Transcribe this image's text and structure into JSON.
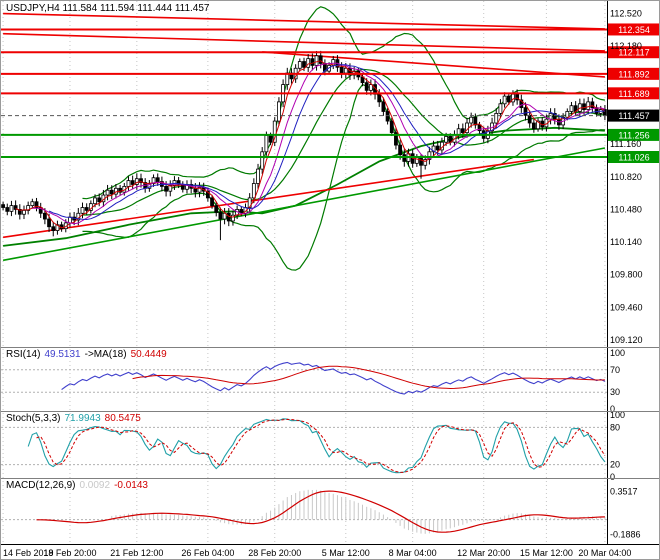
{
  "header": {
    "main": "USDJPY,H4 111.584 111.594 111.444 111.457",
    "rsi": {
      "name": "RSI(14)",
      "value": "49.5131",
      "ma_name": "->MA(18)",
      "ma_value": "50.4449"
    },
    "stoch": {
      "name": "Stoch(5,3,3)",
      "value": "71.9943",
      "signal": "80.5475"
    },
    "macd": {
      "name": "MACD(12,26,9)",
      "value": "0.0092",
      "signal": "-0.0143"
    }
  },
  "colors": {
    "background": "#ffffff",
    "bull": "#ffffff",
    "bear": "#000000",
    "candle_outline": "#000000",
    "resistance": "#ee0000",
    "support": "#009900",
    "bollinger": "#007a00",
    "ma_slow": "#008000",
    "ma_red": "#d00000",
    "ma_magenta": "#b000b0",
    "ma_blue": "#2020c0",
    "rsi_line": "#4040cc",
    "rsi_ma": "#d00000",
    "stoch_k": "#20a0a8",
    "stoch_d": "#d00000",
    "macd_hist": "#c8c8c8",
    "macd_signal": "#d00000",
    "grid": "#c6c6c6",
    "level_dotted": "#b0b0b0",
    "axis_text": "#000000",
    "divider": "#808080",
    "frame": "#000000",
    "current_price_bg": "#000000",
    "current_price_line": "#555555"
  },
  "chart_data": {
    "type": "candlestick",
    "symbol": "USDJPY",
    "timeframe": "H4",
    "last_bar_ohlc": [
      111.584,
      111.594,
      111.444,
      111.457
    ],
    "current_price": 111.457,
    "current_price_label": "111.457",
    "ylim": [
      109.058,
      112.64
    ],
    "yticks": [
      112.52,
      112.18,
      111.16,
      110.82,
      110.48,
      110.14,
      109.8,
      109.46,
      109.12
    ],
    "x_tick_labels": [
      "14 Feb 2019",
      "18 Feb 20:00",
      "21 Feb 12:00",
      "26 Feb 04:00",
      "28 Feb 20:00",
      "5 Mar 12:00",
      "8 Mar 04:00",
      "12 Mar 20:00",
      "15 Mar 12:00",
      "20 Mar 04:00"
    ],
    "x_tick_indices": [
      0,
      16,
      32,
      49,
      65,
      82,
      98,
      115,
      130,
      144
    ],
    "closes": [
      110.5,
      110.46,
      110.52,
      110.48,
      110.43,
      110.47,
      110.52,
      110.56,
      110.5,
      110.44,
      110.38,
      110.3,
      110.26,
      110.32,
      110.28,
      110.34,
      110.4,
      110.37,
      110.44,
      110.5,
      110.47,
      110.54,
      110.6,
      110.56,
      110.63,
      110.68,
      110.64,
      110.7,
      110.66,
      110.72,
      110.78,
      110.74,
      110.8,
      110.76,
      110.7,
      110.75,
      110.81,
      110.77,
      110.72,
      110.67,
      110.73,
      110.78,
      110.74,
      110.69,
      110.74,
      110.7,
      110.66,
      110.71,
      110.67,
      110.6,
      110.52,
      110.45,
      110.38,
      110.44,
      110.36,
      110.42,
      110.48,
      110.44,
      110.5,
      110.6,
      110.75,
      110.9,
      111.08,
      111.25,
      111.18,
      111.4,
      111.6,
      111.78,
      111.9,
      111.84,
      111.95,
      112.02,
      111.96,
      112.05,
      111.98,
      112.08,
      112.0,
      111.92,
      111.98,
      112.04,
      111.96,
      111.9,
      111.95,
      111.88,
      111.92,
      111.86,
      111.8,
      111.72,
      111.78,
      111.68,
      111.6,
      111.5,
      111.4,
      111.28,
      111.15,
      111.05,
      110.98,
      111.06,
      110.96,
      111.02,
      110.94,
      111.0,
      111.08,
      111.14,
      111.1,
      111.18,
      111.24,
      111.18,
      111.26,
      111.32,
      111.28,
      111.38,
      111.44,
      111.36,
      111.3,
      111.22,
      111.3,
      111.38,
      111.48,
      111.58,
      111.66,
      111.6,
      111.68,
      111.62,
      111.54,
      111.46,
      111.38,
      111.32,
      111.4,
      111.34,
      111.42,
      111.48,
      111.42,
      111.36,
      111.44,
      111.5,
      111.56,
      111.5,
      111.58,
      111.52,
      111.6,
      111.54,
      111.48,
      111.52,
      111.457
    ],
    "wick_default": 0.03,
    "wick_overrides": [
      {
        "i": 12,
        "low": 110.2
      },
      {
        "i": 52,
        "low": 110.16
      },
      {
        "i": 75,
        "high": 112.13
      },
      {
        "i": 100,
        "low": 110.8
      }
    ],
    "levels": [
      {
        "value": 112.354,
        "label": "112.354",
        "type": "resistance"
      },
      {
        "value": 112.117,
        "label": "112.117",
        "type": "resistance"
      },
      {
        "value": 111.892,
        "label": "111.892",
        "type": "resistance"
      },
      {
        "value": 111.689,
        "label": "111.689",
        "type": "resistance"
      },
      {
        "value": 111.256,
        "label": "111.256",
        "type": "support"
      },
      {
        "value": 111.026,
        "label": "111.026",
        "type": "support"
      }
    ],
    "trendlines": [
      {
        "from": [
          0,
          112.52
        ],
        "to": [
          144,
          112.36
        ],
        "type": "resistance"
      },
      {
        "from": [
          0,
          112.31
        ],
        "to": [
          144,
          112.13
        ],
        "type": "resistance"
      },
      {
        "from": [
          62,
          112.12
        ],
        "to": [
          144,
          111.86
        ],
        "type": "resistance"
      },
      {
        "from": [
          0,
          110.19
        ],
        "to": [
          127,
          111.0
        ],
        "type": "resistance"
      },
      {
        "from": [
          0,
          109.95
        ],
        "to": [
          144,
          111.12
        ],
        "type": "support"
      }
    ],
    "ma_slow_anchors": [
      [
        0,
        110.1
      ],
      [
        15,
        110.18
      ],
      [
        30,
        110.32
      ],
      [
        45,
        110.44
      ],
      [
        55,
        110.46
      ],
      [
        62,
        110.44
      ],
      [
        70,
        110.52
      ],
      [
        80,
        110.74
      ],
      [
        90,
        110.98
      ],
      [
        100,
        111.14
      ],
      [
        110,
        111.24
      ],
      [
        120,
        111.3
      ],
      [
        132,
        111.33
      ],
      [
        144,
        111.3
      ]
    ],
    "moving_averages": [
      {
        "period": 4,
        "color": "ma_red"
      },
      {
        "period": 8,
        "color": "ma_magenta"
      },
      {
        "period": 12,
        "color": "ma_blue"
      }
    ],
    "bollinger": {
      "period": 20,
      "deviation": 2
    },
    "indicators": {
      "rsi": {
        "period": 14,
        "ma_period": 18,
        "value": 49.5131,
        "ma_value": 50.4449,
        "ylim": [
          0,
          100
        ],
        "yticks": [
          100,
          70,
          30,
          0
        ],
        "dotted_levels": [
          70,
          30
        ]
      },
      "stoch": {
        "k": 5,
        "d": 3,
        "slowing": 3,
        "value": 71.9943,
        "signal_value": 80.5475,
        "ylim": [
          0,
          100
        ],
        "yticks": [
          100,
          80,
          20,
          0
        ],
        "dotted_levels": [
          80,
          20
        ]
      },
      "macd": {
        "fast": 12,
        "slow": 26,
        "signal": 9,
        "value": 0.0092,
        "signal_value": -0.0143,
        "ylim": [
          -0.28,
          0.47
        ],
        "yticks": [
          0.3517,
          -0.1886
        ],
        "dotted_levels": [
          0
        ]
      }
    }
  }
}
